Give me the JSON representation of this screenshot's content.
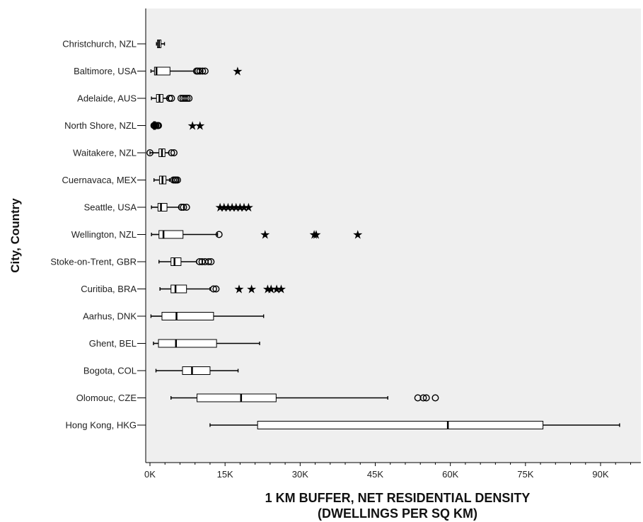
{
  "chart_data": {
    "type": "boxplot",
    "orientation": "horizontal",
    "xlabel_line1": "1 KM BUFFER, NET RESIDENTIAL DENSITY",
    "xlabel_line2": "(DWELLINGS PER SQ KM)",
    "ylabel": "City, Country",
    "xlim": [
      0,
      98000
    ],
    "ticks": [
      {
        "value": 0,
        "label": "0K"
      },
      {
        "value": 15000,
        "label": "15K"
      },
      {
        "value": 30000,
        "label": "30K"
      },
      {
        "value": 45000,
        "label": "45K"
      },
      {
        "value": 60000,
        "label": "60K"
      },
      {
        "value": 75000,
        "label": "75K"
      },
      {
        "value": 90000,
        "label": "90K"
      }
    ],
    "grid": false,
    "colors": {
      "plot_bg": "#efefef",
      "box_fill": "#ffffff",
      "stroke": "#000000",
      "outlier": "#000000"
    },
    "categories": [
      {
        "label": "Christchurch, NZL",
        "min": 1300,
        "q1": 1500,
        "median": 1800,
        "q3": 2200,
        "max": 2900,
        "outliers": [],
        "extremes": []
      },
      {
        "label": "Baltimore, USA",
        "min": 200,
        "q1": 900,
        "median": 1300,
        "q3": 4000,
        "max": 9000,
        "outliers": [
          9300,
          9600,
          10000,
          10500,
          11000
        ],
        "extremes": [
          17500
        ]
      },
      {
        "label": "Adelaide, AUS",
        "min": 300,
        "q1": 1300,
        "median": 1900,
        "q3": 2600,
        "max": 3600,
        "outliers": [
          3900,
          4300,
          6200,
          6600,
          7000,
          7400,
          7800
        ],
        "extremes": []
      },
      {
        "label": "North Shore, NZL",
        "min": 400,
        "q1": 700,
        "median": 900,
        "q3": 1100,
        "max": 1300,
        "outliers": [
          800,
          1000,
          1200,
          1500,
          1700
        ],
        "extremes": [
          8500,
          10000
        ]
      },
      {
        "label": "Waitakere, NZL",
        "min": 0,
        "q1": 1800,
        "median": 2400,
        "q3": 3000,
        "max": 3800,
        "outliers": [
          0,
          4300,
          4800
        ],
        "extremes": []
      },
      {
        "label": "Cuernavaca, MEX",
        "min": 800,
        "q1": 1900,
        "median": 2500,
        "q3": 3200,
        "max": 3900,
        "outliers": [
          4700,
          5000,
          5200,
          5500
        ],
        "extremes": []
      },
      {
        "label": "Seattle, USA",
        "min": 300,
        "q1": 1600,
        "median": 2200,
        "q3": 3400,
        "max": 5800,
        "outliers": [
          6300,
          6700,
          7300
        ],
        "extremes": [
          14000,
          14800,
          15600,
          16400,
          17200,
          18000,
          18800,
          19700
        ]
      },
      {
        "label": "Wellington, NZL",
        "min": 300,
        "q1": 1800,
        "median": 2700,
        "q3": 6600,
        "max": 13500,
        "outliers": [
          13800
        ],
        "extremes": [
          23000,
          32800,
          33200,
          41500
        ]
      },
      {
        "label": "Stoke-on-Trent, GBR",
        "min": 1800,
        "q1": 4200,
        "median": 4900,
        "q3": 6200,
        "max": 9300,
        "outliers": [
          9900,
          10400,
          11000,
          11700,
          12200
        ],
        "extremes": []
      },
      {
        "label": "Curitiba, BRA",
        "min": 2000,
        "q1": 4200,
        "median": 5100,
        "q3": 7300,
        "max": 12000,
        "outliers": [
          12700,
          13200
        ],
        "extremes": [
          17800,
          20300,
          23500,
          24200,
          25300,
          26200
        ]
      },
      {
        "label": "Aarhus, DNK",
        "min": 200,
        "q1": 2400,
        "median": 5300,
        "q3": 12700,
        "max": 22700,
        "outliers": [],
        "extremes": []
      },
      {
        "label": "Ghent, BEL",
        "min": 700,
        "q1": 1700,
        "median": 5200,
        "q3": 13300,
        "max": 21900,
        "outliers": [],
        "extremes": []
      },
      {
        "label": "Bogota, COL",
        "min": 1200,
        "q1": 6500,
        "median": 8400,
        "q3": 12000,
        "max": 17600,
        "outliers": [],
        "extremes": []
      },
      {
        "label": "Olomouc, CZE",
        "min": 4200,
        "q1": 9400,
        "median": 18200,
        "q3": 25200,
        "max": 47500,
        "outliers": [
          53500,
          54600,
          55200,
          57000
        ],
        "extremes": []
      },
      {
        "label": "Hong Kong, HKG",
        "min": 12000,
        "q1": 21500,
        "median": 59500,
        "q3": 78500,
        "max": 93800,
        "outliers": [],
        "extremes": []
      }
    ]
  }
}
